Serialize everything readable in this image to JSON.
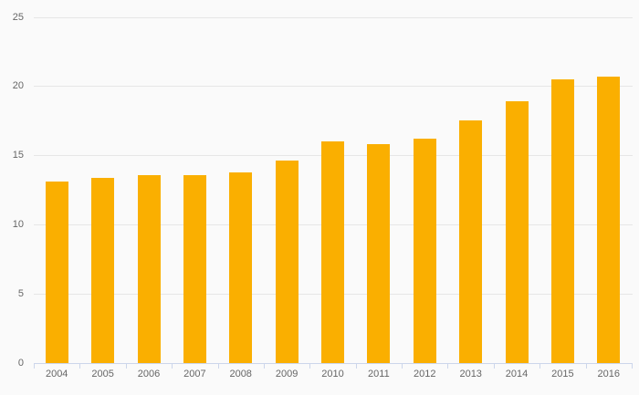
{
  "chart_data": {
    "type": "bar",
    "orientation": "vertical",
    "title": "",
    "xlabel": "",
    "ylabel": "",
    "categories": [
      "2004",
      "2005",
      "2006",
      "2007",
      "2008",
      "2009",
      "2010",
      "2011",
      "2012",
      "2013",
      "2014",
      "2015",
      "2016"
    ],
    "values": [
      13.1,
      13.4,
      13.6,
      13.6,
      13.8,
      14.6,
      16.0,
      15.8,
      16.2,
      17.5,
      18.9,
      20.5,
      20.7
    ],
    "ylim": [
      0,
      25
    ],
    "ytick_step": 5,
    "ytick_labels": [
      "0",
      "5",
      "10",
      "15",
      "20",
      "25"
    ],
    "grid": true,
    "legend": false,
    "colors": {
      "bar": "#faaf00",
      "background": "#fafafa",
      "gridline": "#e6e6e6",
      "axis_line": "#ccd6eb",
      "label_text": "#666666"
    }
  }
}
